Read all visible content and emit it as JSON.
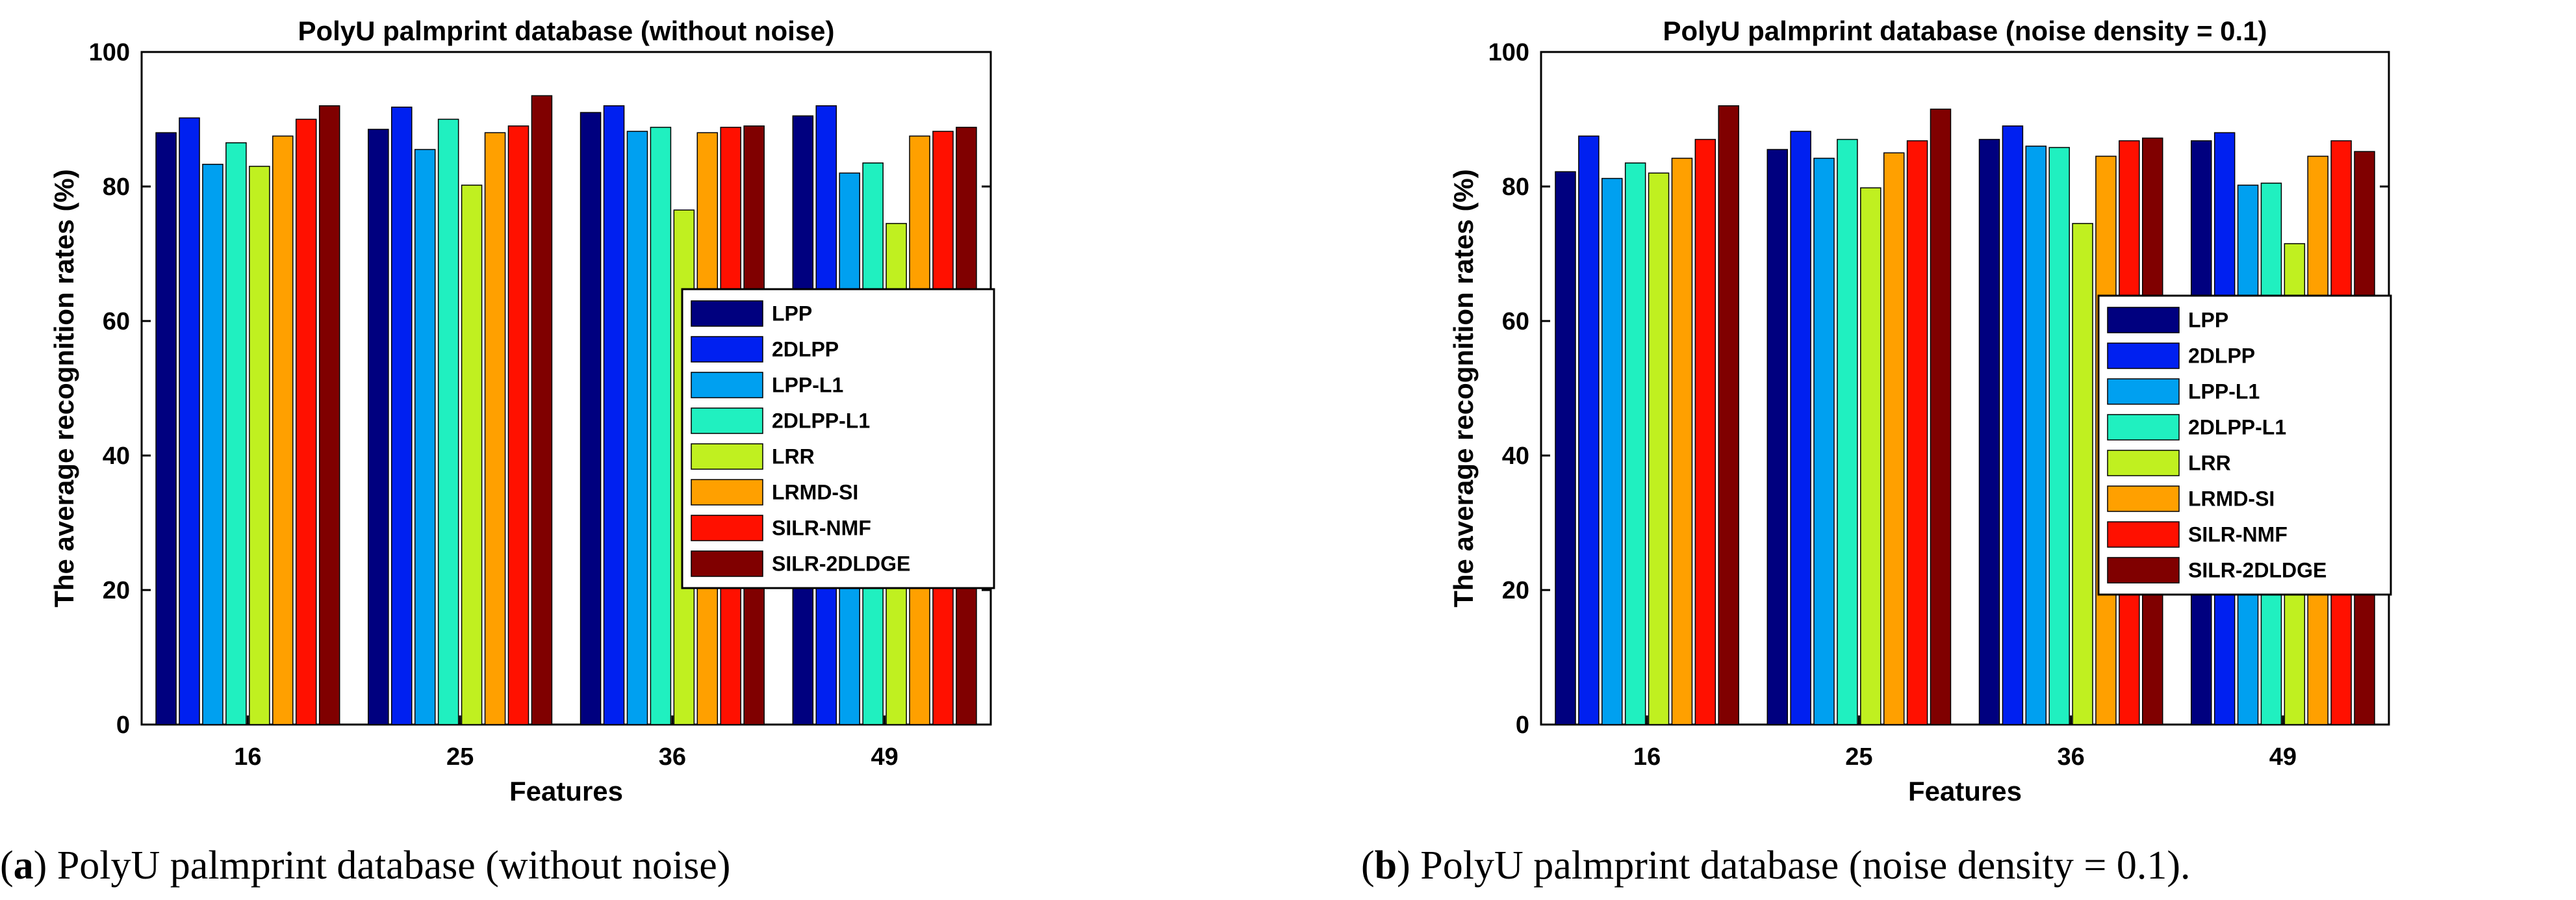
{
  "chart_data": [
    {
      "type": "bar",
      "title": "PolyU palmprint database (without noise)",
      "xlabel": "Features",
      "ylabel": "The average recognition rates (%)",
      "ylim": [
        0,
        100
      ],
      "yticks": [
        0,
        20,
        40,
        60,
        80,
        100
      ],
      "categories": [
        "16",
        "25",
        "36",
        "49"
      ],
      "legend_position": "center-right",
      "series": [
        {
          "name": "LPP",
          "color": "#00007F",
          "values": [
            88.0,
            88.5,
            91.0,
            90.5
          ]
        },
        {
          "name": "2DLPP",
          "color": "#0020F0",
          "values": [
            90.2,
            91.8,
            92.0,
            92.0
          ]
        },
        {
          "name": "LPP-L1",
          "color": "#00A0F0",
          "values": [
            83.3,
            85.5,
            88.2,
            82.0
          ]
        },
        {
          "name": "2DLPP-L1",
          "color": "#20F0C0",
          "values": [
            86.5,
            90.0,
            88.8,
            83.5
          ]
        },
        {
          "name": "LRR",
          "color": "#C0F020",
          "values": [
            83.0,
            80.2,
            76.5,
            74.5
          ]
        },
        {
          "name": "LRMD-SI",
          "color": "#FFA000",
          "values": [
            87.5,
            88.0,
            88.0,
            87.5
          ]
        },
        {
          "name": "SILR-NMF",
          "color": "#FF1000",
          "values": [
            90.0,
            89.0,
            88.8,
            88.2
          ]
        },
        {
          "name": "SILR-2DLDGE",
          "color": "#800000",
          "values": [
            92.0,
            93.5,
            89.0,
            88.8
          ]
        }
      ]
    },
    {
      "type": "bar",
      "title": "PolyU palmprint database (noise density = 0.1)",
      "xlabel": "Features",
      "ylabel": "The average recognition rates (%)",
      "ylim": [
        0,
        100
      ],
      "yticks": [
        0,
        20,
        40,
        60,
        80,
        100
      ],
      "categories": [
        "16",
        "25",
        "36",
        "49"
      ],
      "legend_position": "center-right",
      "series": [
        {
          "name": "LPP",
          "color": "#00007F",
          "values": [
            82.2,
            85.5,
            87.0,
            86.8
          ]
        },
        {
          "name": "2DLPP",
          "color": "#0020F0",
          "values": [
            87.5,
            88.2,
            89.0,
            88.0
          ]
        },
        {
          "name": "LPP-L1",
          "color": "#00A0F0",
          "values": [
            81.2,
            84.2,
            86.0,
            80.2
          ]
        },
        {
          "name": "2DLPP-L1",
          "color": "#20F0C0",
          "values": [
            83.5,
            87.0,
            85.8,
            80.5
          ]
        },
        {
          "name": "LRR",
          "color": "#C0F020",
          "values": [
            82.0,
            79.8,
            74.5,
            71.5
          ]
        },
        {
          "name": "LRMD-SI",
          "color": "#FFA000",
          "values": [
            84.2,
            85.0,
            84.5,
            84.5
          ]
        },
        {
          "name": "SILR-NMF",
          "color": "#FF1000",
          "values": [
            87.0,
            86.8,
            86.8,
            86.8
          ]
        },
        {
          "name": "SILR-2DLDGE",
          "color": "#800000",
          "values": [
            92.0,
            91.5,
            87.2,
            85.2
          ]
        }
      ]
    }
  ],
  "captions": [
    {
      "letter": "a",
      "text": "PolyU palmprint database (without noise)"
    },
    {
      "letter": "b",
      "text": "PolyU palmprint database (noise density = 0.1)."
    }
  ]
}
